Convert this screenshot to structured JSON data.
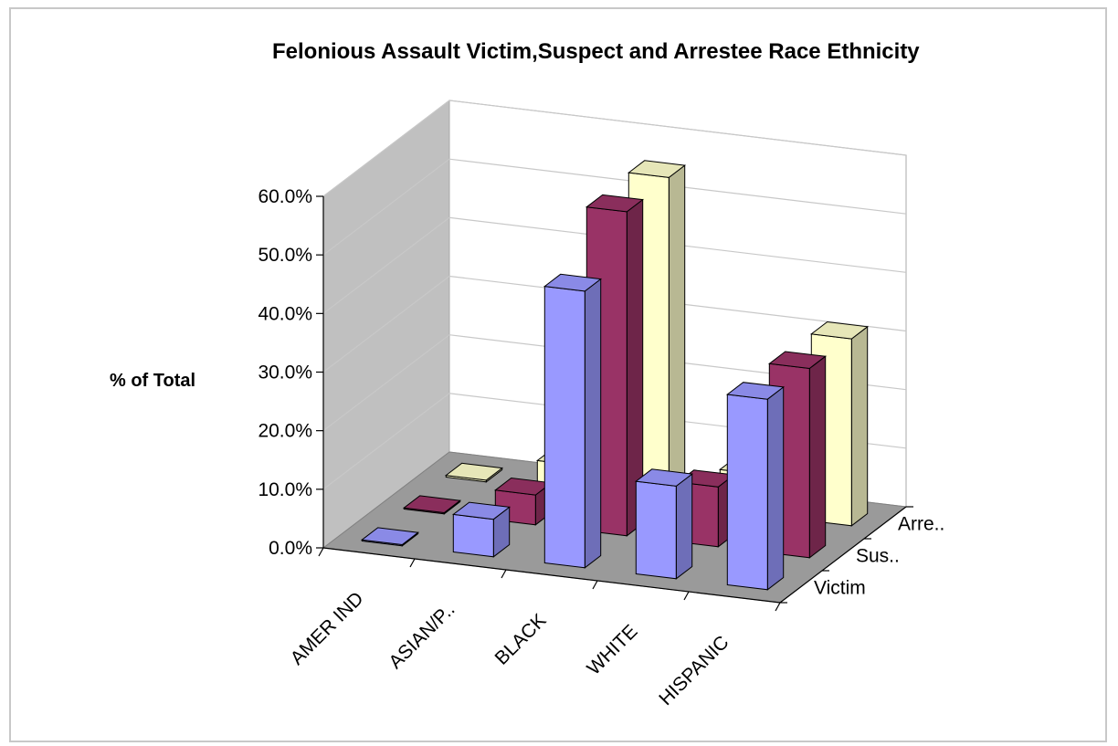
{
  "chart_data": {
    "type": "bar",
    "title": "Felonious Assault Victim,Suspect and Arrestee Race Ethnicity",
    "xlabel": "",
    "ylabel": "% of Total",
    "ylim": [
      0,
      0.6
    ],
    "y_tick_labels": [
      "0.0%",
      "10.0%",
      "20.0%",
      "30.0%",
      "40.0%",
      "50.0%",
      "60.0%"
    ],
    "categories": [
      "AMER IND",
      "ASIAN/P..",
      "BLACK",
      "WHITE",
      "HISPANIC"
    ],
    "series": [
      {
        "name": "Victim",
        "values": [
          0.002,
          0.064,
          0.472,
          0.158,
          0.325
        ]
      },
      {
        "name": "Sus..",
        "values": [
          0.002,
          0.051,
          0.553,
          0.102,
          0.323
        ]
      },
      {
        "name": "Arre..",
        "values": [
          0.003,
          0.047,
          0.557,
          0.069,
          0.319
        ]
      }
    ],
    "grid": true,
    "projection": "3d-column"
  },
  "colors": {
    "victim": "#9999ff",
    "suspect": "#993366",
    "arrestee": "#ffffcc",
    "walls": "#c0c0c0",
    "floor": "#9a9a9a",
    "gridlines": "#c8c8c8"
  }
}
